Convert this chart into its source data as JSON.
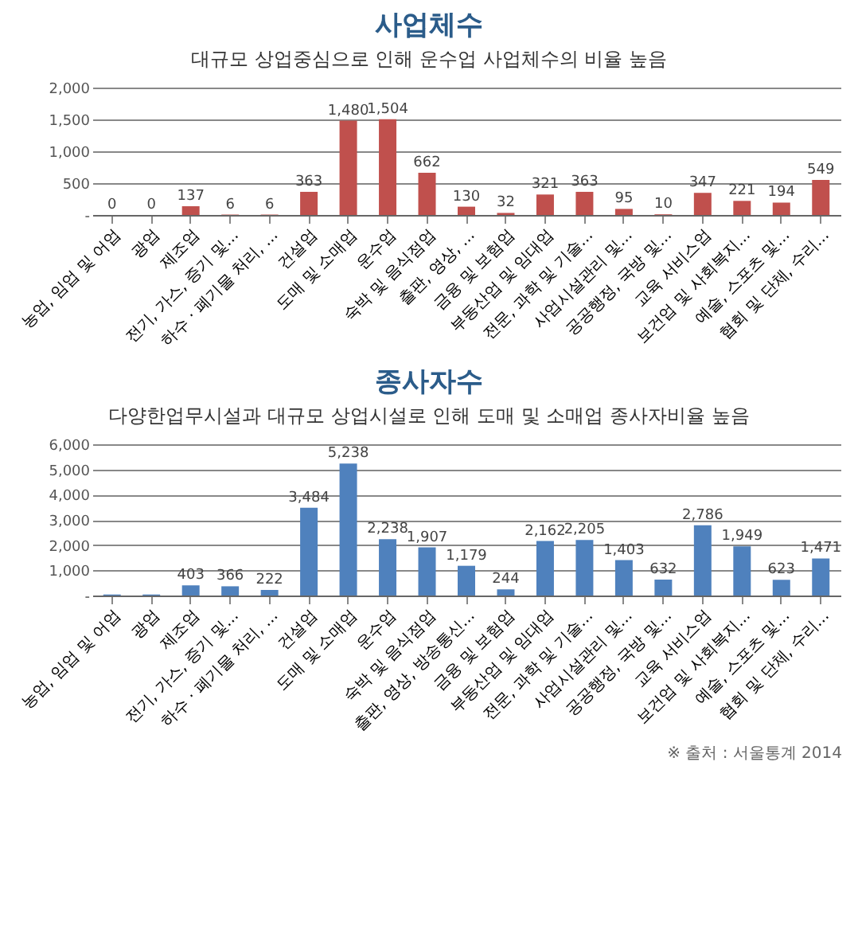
{
  "chart_data": [
    {
      "type": "bar",
      "title": "사업체수",
      "subtitle": "대규모 상업중심으로 인해 운수업 사업체수의 비율 높음",
      "categories": [
        "농업, 임업 및 어업",
        "광업",
        "제조업",
        "전기, 가스, 증기 및...",
        "하수 · 폐기물 처리, ...",
        "건설업",
        "도매 및 소매업",
        "운수업",
        "숙박 및 음식점업",
        "출판, 영상, ...",
        "금융 및 보험업",
        "부동산업 및 임대업",
        "전문, 과학 및 기술...",
        "사업시설관리 및...",
        "공공행정, 국방 및...",
        "교육 서비스업",
        "보건업 및 사회복지...",
        "예술, 스포츠 및...",
        "협회 및 단체, 수리..."
      ],
      "series": [
        {
          "color": "#c0504d",
          "values": [
            0,
            0,
            137,
            6,
            6,
            363,
            1480,
            1504,
            662,
            130,
            32,
            321,
            363,
            95,
            10,
            347,
            221,
            194,
            549
          ],
          "value_labels": [
            "0",
            "0",
            "137",
            "6",
            "6",
            "363",
            "1,480",
            "1,504",
            "662",
            "130",
            "32",
            "321",
            "363",
            "95",
            "10",
            "347",
            "221",
            "194",
            "549"
          ]
        }
      ],
      "ylim": [
        0,
        2000
      ],
      "yticks": [
        {
          "value": 0,
          "label": "-"
        },
        500,
        {
          "value": 1000,
          "label": "1,000"
        },
        {
          "value": 1500,
          "label": "1,500"
        },
        {
          "value": 2000,
          "label": "2,000"
        }
      ],
      "grid": "y"
    },
    {
      "type": "bar",
      "title": "종사자수",
      "subtitle": "다양한업무시설과 대규모 상업시설로 인해 도매 및 소매업 종사자비율 높음",
      "categories": [
        "농업, 임업 및 어업",
        "광업",
        "제조업",
        "전기, 가스, 증기 및...",
        "하수 · 폐기물 처리, ...",
        "건설업",
        "도매 및 소매업",
        "운수업",
        "숙박 및 음식점업",
        "출판, 영상, 방송통신...",
        "금융 및 보험업",
        "부동산업 및 임대업",
        "전문, 과학 및 기술...",
        "사업시설관리 및...",
        "공공행정, 국방 및...",
        "교육 서비스업",
        "보건업 및 사회복지...",
        "예술, 스포츠 및...",
        "협회 및 단체, 수리..."
      ],
      "series": [
        {
          "color": "#4f81bd",
          "values": [
            40,
            40,
            403,
            366,
            222,
            3484,
            5238,
            2238,
            1907,
            1179,
            244,
            2162,
            2205,
            1403,
            632,
            2786,
            1949,
            623,
            1471
          ],
          "value_labels": [
            null,
            null,
            "403",
            "366",
            "222",
            "3,484",
            "5,238",
            "2,238",
            "1,907",
            "1,179",
            "244",
            "2,162",
            "2,205",
            "1,403",
            "632",
            "2,786",
            "1,949",
            "623",
            "1,471"
          ]
        }
      ],
      "ylim": [
        0,
        6000
      ],
      "yticks": [
        {
          "value": 0,
          "label": "-"
        },
        {
          "value": 1000,
          "label": "1,000"
        },
        {
          "value": 2000,
          "label": "2,000"
        },
        {
          "value": 3000,
          "label": "3,000"
        },
        {
          "value": 4000,
          "label": "4,000"
        },
        {
          "value": 5000,
          "label": "5,000"
        },
        {
          "value": 6000,
          "label": "6,000"
        }
      ],
      "grid": "y",
      "annotations": [
        "※ 출처 : 서울통계 2014"
      ]
    }
  ]
}
